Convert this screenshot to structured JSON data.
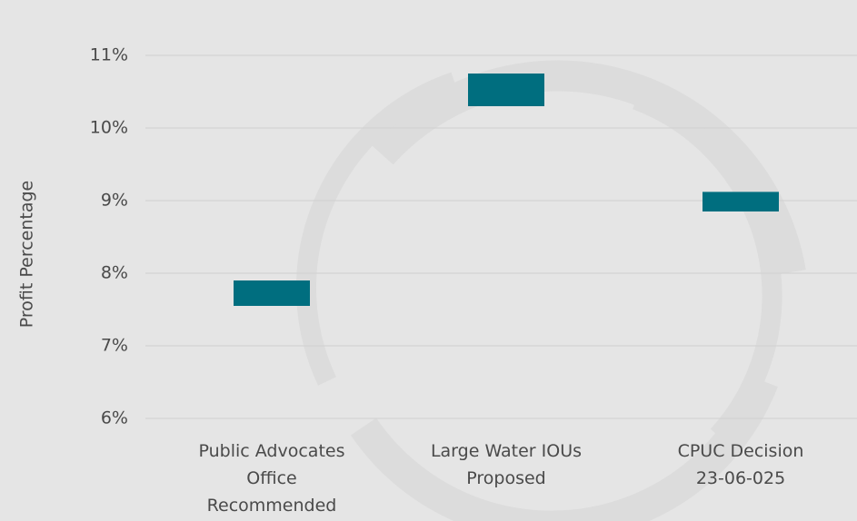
{
  "chart_data": {
    "type": "floating_bar",
    "y_label": "Profit Percentage",
    "categories": [
      "Public Advocates Office Recommended",
      "Large Water IOUs Proposed",
      "CPUC Decision 23-06-025"
    ],
    "low": [
      7.55,
      10.3,
      8.85
    ],
    "high": [
      7.9,
      10.75,
      9.12
    ],
    "color": "#006e7f",
    "ylim": [
      6,
      11
    ],
    "yticks": [
      {
        "value": 6,
        "label": "6%"
      },
      {
        "value": 7,
        "label": "7%"
      },
      {
        "value": 8,
        "label": "8%"
      },
      {
        "value": 9,
        "label": "9%"
      },
      {
        "value": 10,
        "label": "10%"
      },
      {
        "value": 11,
        "label": "11%"
      }
    ],
    "grid": true
  }
}
